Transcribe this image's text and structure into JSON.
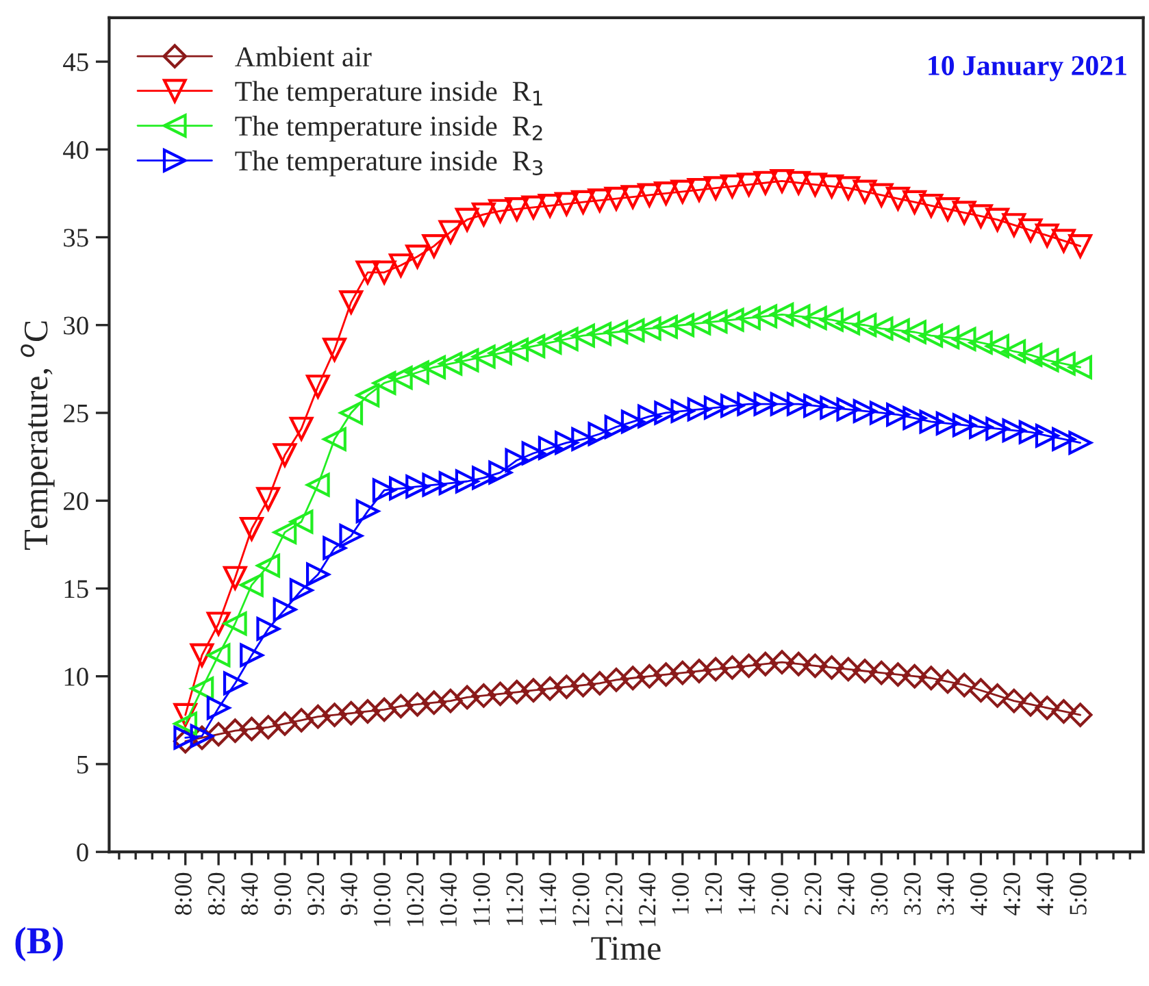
{
  "chart_data": {
    "type": "line",
    "xlabel": "Time",
    "ylabel": "Temperature, $^{o}$C",
    "annotations": [
      "10 January 2021",
      "(B)"
    ],
    "categories": [
      "8:00",
      null,
      "8:20",
      null,
      "8:40",
      null,
      "9:00",
      null,
      "9:20",
      null,
      "9:40",
      null,
      "10:00",
      null,
      "10:20",
      null,
      "10:40",
      null,
      "11:00",
      null,
      "11:20",
      null,
      "11:40",
      null,
      "12:00",
      null,
      "12:20",
      null,
      "12:40",
      null,
      "1:00",
      null,
      "1:20",
      null,
      "1:40",
      null,
      "2:00",
      null,
      "2:20",
      null,
      "2:40",
      null,
      "3:00",
      null,
      "3:20",
      null,
      "3:40",
      null,
      "4:00",
      null,
      "4:20",
      null,
      "4:40",
      null,
      "5:00"
    ],
    "series": [
      {
        "name": "Ambient air",
        "color": "#8b1a1a",
        "marker": "diamond",
        "values": [
          6.3,
          6.5,
          6.7,
          6.9,
          7.0,
          7.1,
          7.3,
          7.5,
          7.7,
          7.8,
          7.9,
          8.0,
          8.1,
          8.3,
          8.4,
          8.5,
          8.6,
          8.8,
          8.9,
          9.0,
          9.1,
          9.2,
          9.3,
          9.4,
          9.5,
          9.6,
          9.8,
          9.9,
          10.0,
          10.1,
          10.2,
          10.3,
          10.4,
          10.5,
          10.6,
          10.7,
          10.8,
          10.7,
          10.6,
          10.5,
          10.4,
          10.3,
          10.2,
          10.1,
          10.0,
          9.9,
          9.7,
          9.5,
          9.2,
          8.9,
          8.6,
          8.4,
          8.2,
          8.0,
          7.8
        ]
      },
      {
        "name": "The temperature inside  R$_{1}$",
        "color": "#ff0000",
        "marker": "triangle_down",
        "values": [
          7.8,
          11.2,
          13.0,
          15.6,
          18.4,
          20.1,
          22.6,
          24.1,
          26.5,
          28.6,
          31.3,
          33.0,
          33.0,
          33.4,
          33.9,
          34.5,
          35.3,
          36.0,
          36.3,
          36.5,
          36.6,
          36.7,
          36.8,
          36.9,
          37.0,
          37.1,
          37.2,
          37.3,
          37.4,
          37.5,
          37.6,
          37.7,
          37.8,
          37.9,
          38.0,
          38.1,
          38.2,
          38.1,
          38.0,
          37.9,
          37.8,
          37.6,
          37.4,
          37.2,
          37.0,
          36.8,
          36.6,
          36.4,
          36.2,
          36.0,
          35.7,
          35.4,
          35.1,
          34.8,
          34.5
        ]
      },
      {
        "name": "The temperature inside  R$_{2}$",
        "color": "#22ee22",
        "marker": "triangle_left",
        "values": [
          7.3,
          9.3,
          11.2,
          13.0,
          15.2,
          16.3,
          18.2,
          18.8,
          20.9,
          23.5,
          25.0,
          26.0,
          26.7,
          27.0,
          27.3,
          27.6,
          27.8,
          28.0,
          28.2,
          28.4,
          28.6,
          28.8,
          29.0,
          29.2,
          29.4,
          29.5,
          29.6,
          29.7,
          29.8,
          29.9,
          30.0,
          30.1,
          30.2,
          30.3,
          30.4,
          30.5,
          30.6,
          30.5,
          30.4,
          30.3,
          30.1,
          30.0,
          29.8,
          29.7,
          29.6,
          29.4,
          29.3,
          29.2,
          29.0,
          28.8,
          28.5,
          28.3,
          28.0,
          27.8,
          27.6
        ]
      },
      {
        "name": "The temperature inside  R$_{3}$",
        "color": "#0000ff",
        "marker": "triangle_right",
        "values": [
          6.5,
          6.6,
          8.2,
          9.6,
          11.2,
          12.7,
          13.8,
          14.9,
          15.8,
          17.3,
          18.0,
          19.4,
          20.6,
          20.7,
          20.8,
          20.9,
          21.0,
          21.1,
          21.3,
          21.6,
          22.3,
          22.7,
          23.0,
          23.3,
          23.5,
          23.8,
          24.2,
          24.5,
          24.8,
          25.0,
          25.1,
          25.2,
          25.3,
          25.4,
          25.5,
          25.5,
          25.5,
          25.5,
          25.4,
          25.3,
          25.2,
          25.1,
          25.0,
          24.9,
          24.7,
          24.5,
          24.4,
          24.3,
          24.2,
          24.1,
          24.0,
          23.9,
          23.7,
          23.5,
          23.3
        ]
      }
    ],
    "ylim": [
      0,
      47.5
    ],
    "yticks": [
      0,
      5,
      10,
      15,
      20,
      25,
      30,
      35,
      40,
      45
    ],
    "grid": false,
    "legend": "top left",
    "line_style": "solid"
  }
}
